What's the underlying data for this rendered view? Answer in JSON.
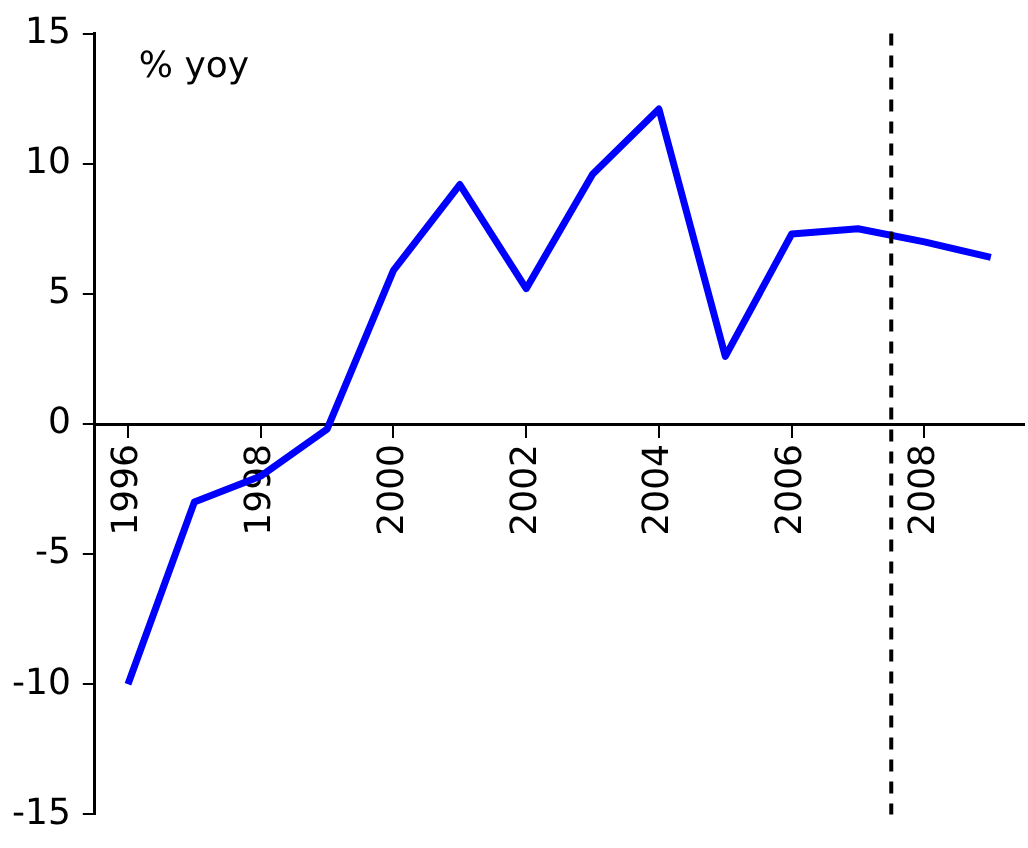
{
  "chart_data": {
    "type": "line",
    "annotations": [
      "% yoy"
    ],
    "x": [
      1996,
      1997,
      1998,
      1999,
      2000,
      2001,
      2002,
      2003,
      2004,
      2005,
      2006,
      2007,
      2008,
      2009
    ],
    "series": [
      {
        "color": "#0000ff",
        "values": [
          -10,
          -3,
          -2,
          -0.2,
          5.9,
          9.2,
          5.2,
          9.6,
          12.1,
          2.6,
          7.3,
          7.5,
          7,
          6.4
        ]
      }
    ],
    "xlim": [
      1995.5,
      2009.5
    ],
    "xticks": [
      1996,
      1998,
      2000,
      2002,
      2004,
      2006,
      2008
    ],
    "ylim": [
      -15,
      15
    ],
    "yticks": [
      -15,
      -10,
      -5,
      0,
      5,
      10,
      15
    ],
    "ref_lines": [
      {
        "axis": "x",
        "value": 2007.5,
        "line_style": "dashed",
        "color": "#000000"
      }
    ],
    "grid": false,
    "legend": false,
    "marker": "none",
    "line_style": "solid"
  }
}
